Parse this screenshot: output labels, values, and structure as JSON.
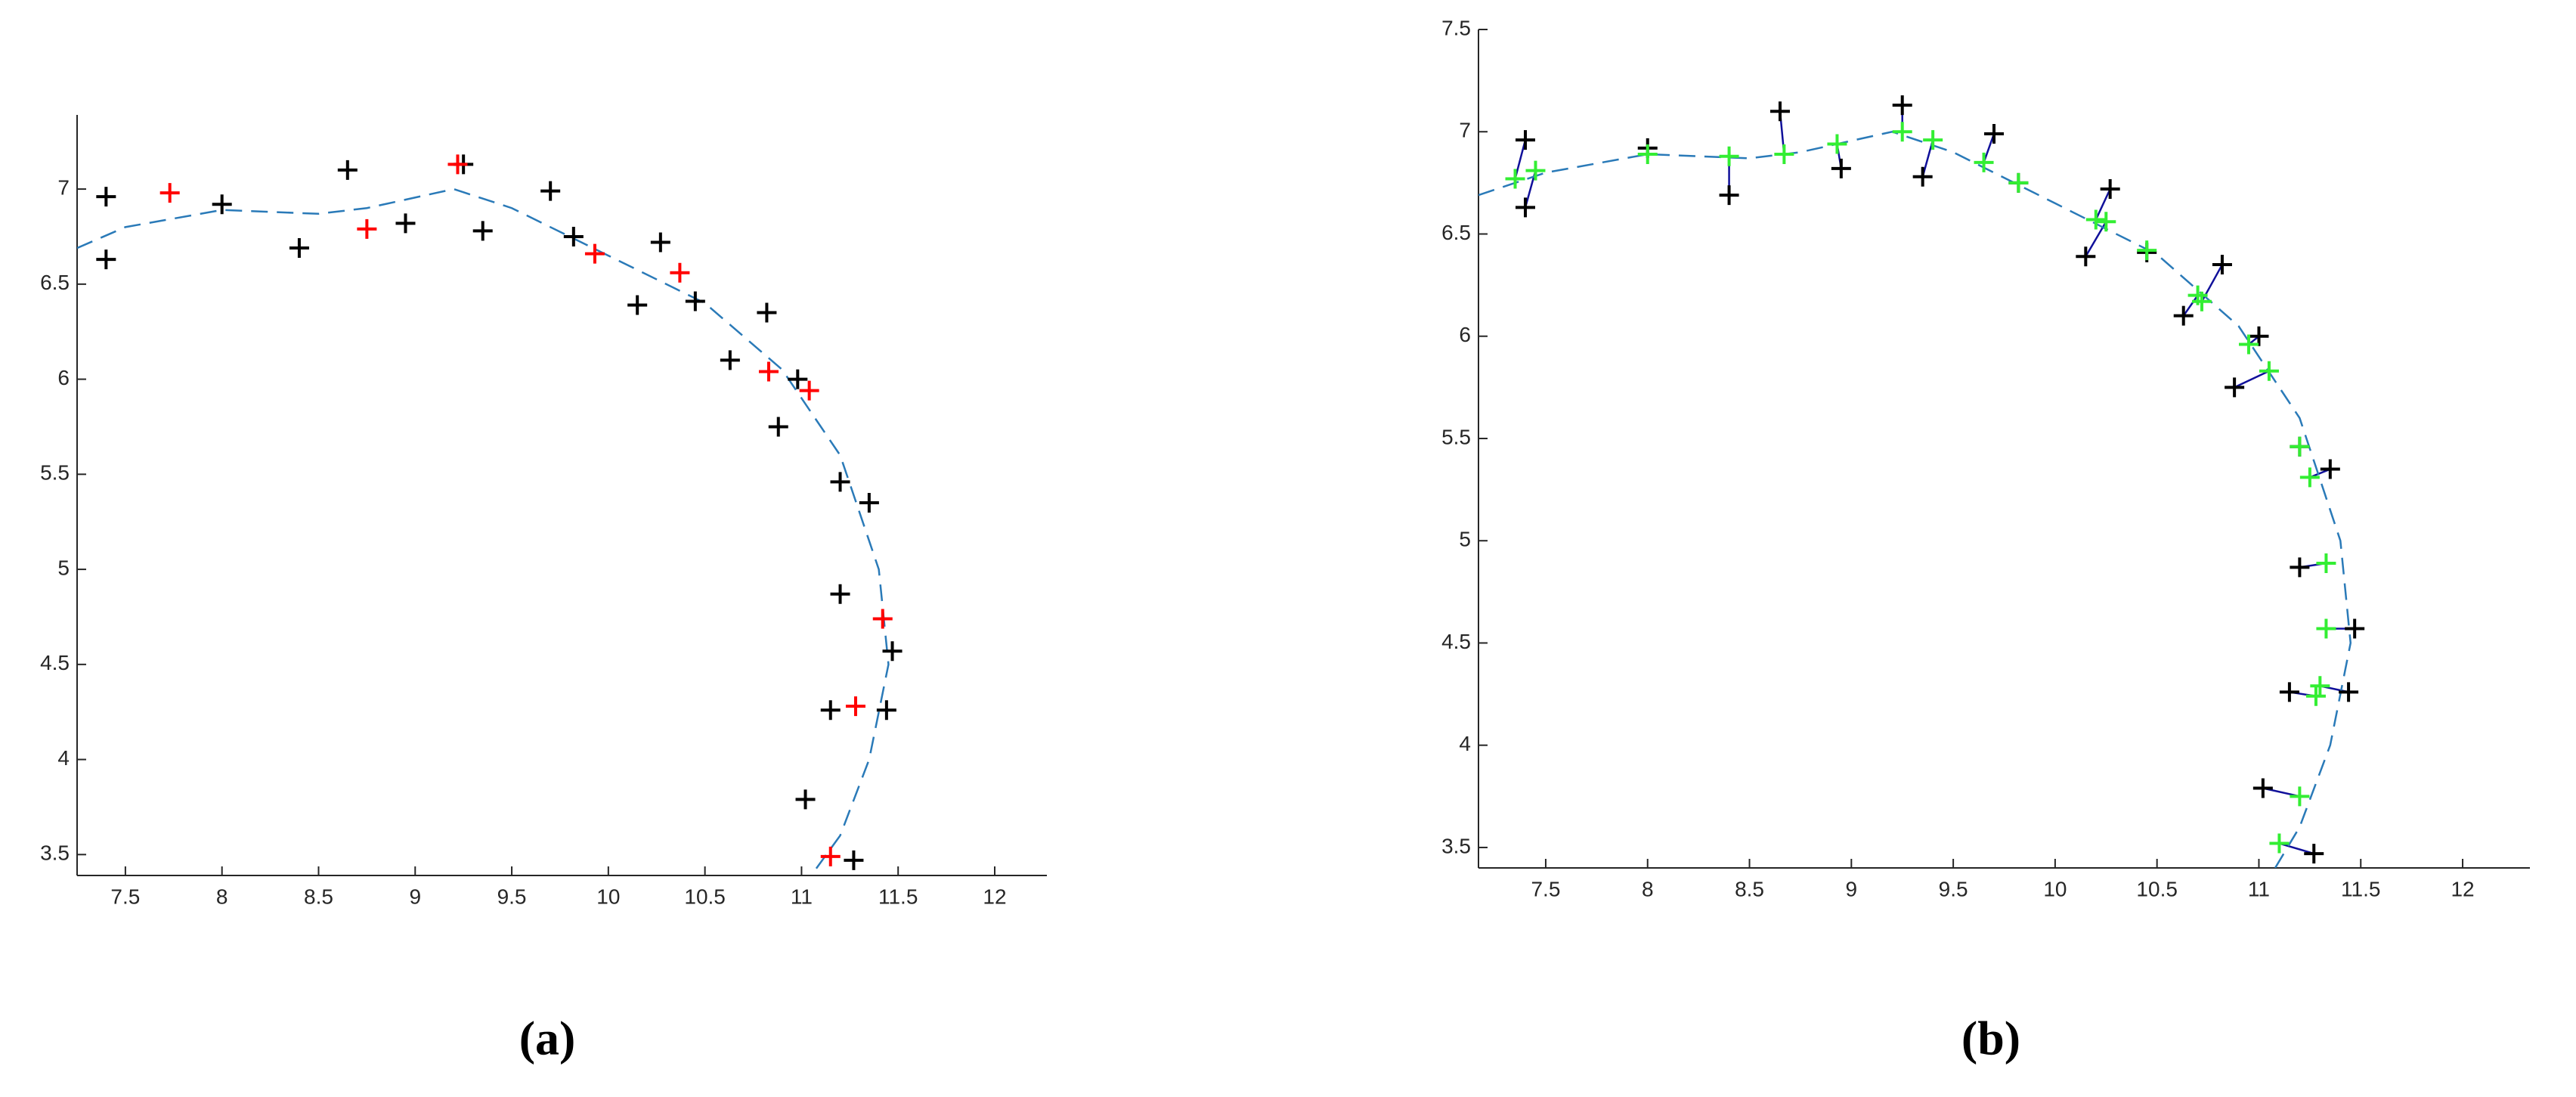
{
  "chart_data": [
    {
      "type": "scatter",
      "caption": "(a)",
      "xlim": [
        7.25,
        12.27
      ],
      "ylim": [
        3.39,
        7.39
      ],
      "xticks": [
        7.5,
        8,
        8.5,
        9,
        9.5,
        10,
        10.5,
        11,
        11.5,
        12
      ],
      "yticks": [
        3.5,
        4,
        4.5,
        5,
        5.5,
        6,
        6.5,
        7
      ],
      "series": [
        {
          "type": "line",
          "color": "#2a7ab8",
          "dashed": true,
          "x": [
            7.25,
            7.5,
            8,
            8.5,
            8.75,
            9.2,
            9.5,
            10,
            10.5,
            10.9,
            11.2,
            11.4,
            11.45,
            11.35,
            11.2,
            11.05
          ],
          "y": [
            6.69,
            6.8,
            6.89,
            6.87,
            6.9,
            7.0,
            6.9,
            6.65,
            6.4,
            6.05,
            5.6,
            5.0,
            4.5,
            4.0,
            3.6,
            3.39
          ]
        },
        {
          "type": "scatter",
          "marker": "+",
          "color": "#000000",
          "x": [
            7.4,
            7.4,
            8,
            8.4,
            8.65,
            8.95,
            9.25,
            9.35,
            9.7,
            9.82,
            10.15,
            10.27,
            10.45,
            10.63,
            10.82,
            10.88,
            10.98,
            11.2,
            11.35,
            11.2,
            11.47,
            11.15,
            11.44,
            11.02,
            11.27
          ],
          "y": [
            6.96,
            6.63,
            6.92,
            6.69,
            7.1,
            6.82,
            7.13,
            6.78,
            6.99,
            6.75,
            6.39,
            6.72,
            6.41,
            6.1,
            6.35,
            5.75,
            6.0,
            5.46,
            5.35,
            4.87,
            4.57,
            4.26,
            4.26,
            3.79,
            3.47
          ]
        },
        {
          "type": "scatter",
          "marker": "+",
          "color": "#ff0000",
          "x": [
            7.73,
            8.75,
            9.22,
            9.93,
            10.37,
            10.83,
            11.04,
            11.42,
            11.28,
            11.15
          ],
          "y": [
            6.98,
            6.79,
            7.13,
            6.66,
            6.56,
            6.04,
            5.94,
            4.74,
            4.28,
            3.49
          ]
        }
      ]
    },
    {
      "type": "scatter",
      "caption": "(b)",
      "xlim": [
        7.17,
        12.33
      ],
      "ylim": [
        3.4,
        7.5
      ],
      "xticks": [
        7.5,
        8,
        8.5,
        9,
        9.5,
        10,
        10.5,
        11,
        11.5,
        12
      ],
      "yticks": [
        3.5,
        4,
        4.5,
        5,
        5.5,
        6,
        6.5,
        7,
        7.5
      ],
      "connectors": {
        "from": 1,
        "to": 2,
        "color": "#10109a"
      },
      "series": [
        {
          "type": "line",
          "color": "#2a7ab8",
          "dashed": true,
          "x": [
            7.17,
            7.5,
            8,
            8.5,
            8.75,
            9.2,
            9.5,
            10,
            10.5,
            10.9,
            11.2,
            11.4,
            11.45,
            11.35,
            11.2,
            11.08
          ],
          "y": [
            6.69,
            6.8,
            6.89,
            6.87,
            6.9,
            7.0,
            6.9,
            6.65,
            6.4,
            6.05,
            5.6,
            5.0,
            4.5,
            4.0,
            3.6,
            3.4
          ]
        },
        {
          "type": "scatter",
          "marker": "+",
          "color": "#000000",
          "x": [
            7.4,
            7.4,
            8,
            8.4,
            8.65,
            8.95,
            9.25,
            9.35,
            9.7,
            9.82,
            10.15,
            10.27,
            10.45,
            10.63,
            10.82,
            10.88,
            11.0,
            11.2,
            11.35,
            11.2,
            11.47,
            11.15,
            11.44,
            11.02,
            11.27
          ],
          "y": [
            6.96,
            6.63,
            6.92,
            6.69,
            7.1,
            6.82,
            7.13,
            6.78,
            6.99,
            6.75,
            6.39,
            6.72,
            6.41,
            6.1,
            6.35,
            5.75,
            6.0,
            5.46,
            5.35,
            4.87,
            4.57,
            4.26,
            4.26,
            3.79,
            3.47
          ]
        },
        {
          "type": "scatter",
          "marker": "+",
          "color": "#33ee33",
          "x": [
            7.35,
            7.45,
            8,
            8.4,
            8.67,
            8.93,
            9.25,
            9.4,
            9.65,
            9.82,
            10.25,
            10.2,
            10.45,
            10.7,
            10.72,
            11.05,
            10.95,
            11.2,
            11.25,
            11.33,
            11.33,
            11.28,
            11.3,
            11.2,
            11.1
          ],
          "y": [
            6.77,
            6.81,
            6.89,
            6.88,
            6.89,
            6.94,
            7.0,
            6.96,
            6.85,
            6.75,
            6.56,
            6.57,
            6.42,
            6.2,
            6.17,
            5.83,
            5.96,
            5.46,
            5.31,
            4.89,
            4.57,
            4.24,
            4.29,
            3.75,
            3.52
          ]
        }
      ]
    }
  ]
}
